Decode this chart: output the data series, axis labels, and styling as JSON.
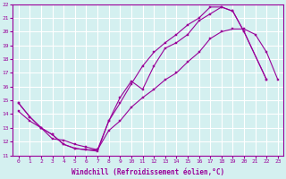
{
  "xlabel": "Windchill (Refroidissement éolien,°C)",
  "line_color": "#990099",
  "background_color": "#d4f0f0",
  "grid_color": "#ffffff",
  "xlim": [
    -0.5,
    23.5
  ],
  "ylim": [
    11,
    22
  ],
  "xticks": [
    0,
    1,
    2,
    3,
    4,
    5,
    6,
    7,
    8,
    9,
    10,
    11,
    12,
    13,
    14,
    15,
    16,
    17,
    18,
    19,
    20,
    21,
    22,
    23
  ],
  "yticks": [
    11,
    12,
    13,
    14,
    15,
    16,
    17,
    18,
    19,
    20,
    21,
    22
  ],
  "line1_x": [
    0,
    1,
    2,
    3,
    4,
    5,
    6,
    7,
    8,
    9,
    10,
    11,
    12,
    13,
    14,
    15,
    16,
    17,
    18,
    19,
    20,
    22
  ],
  "line1_y": [
    14.8,
    13.8,
    13.0,
    12.5,
    11.8,
    11.5,
    11.4,
    11.4,
    13.5,
    15.2,
    16.4,
    15.8,
    17.5,
    18.8,
    19.2,
    19.8,
    20.8,
    21.3,
    21.8,
    21.5,
    20.0,
    16.5
  ],
  "line2_x": [
    0,
    1,
    2,
    3,
    4,
    5,
    6,
    7,
    8,
    9,
    10,
    11,
    12,
    13,
    14,
    15,
    16,
    17,
    18,
    19,
    20,
    22
  ],
  "line2_y": [
    14.8,
    13.8,
    13.0,
    12.5,
    11.8,
    11.5,
    11.4,
    11.3,
    13.5,
    14.8,
    16.2,
    17.5,
    18.5,
    19.2,
    19.8,
    20.5,
    21.0,
    21.8,
    21.8,
    21.5,
    20.0,
    16.5
  ],
  "line3_x": [
    0,
    1,
    2,
    3,
    4,
    5,
    6,
    7,
    8,
    9,
    10,
    11,
    12,
    13,
    14,
    15,
    16,
    17,
    18,
    19,
    20,
    21,
    22,
    23
  ],
  "line3_y": [
    14.2,
    13.5,
    13.0,
    12.2,
    12.1,
    11.8,
    11.6,
    11.4,
    12.8,
    13.5,
    14.5,
    15.2,
    15.8,
    16.5,
    17.0,
    17.8,
    18.5,
    19.5,
    20.0,
    20.2,
    20.2,
    19.8,
    18.5,
    16.5
  ]
}
